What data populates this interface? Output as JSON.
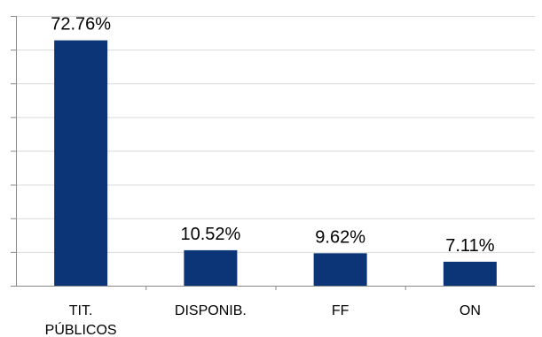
{
  "chart_data": {
    "type": "bar",
    "categories": [
      "TIT. PÚBLICOS",
      "DISPONIB.",
      "FF",
      "ON"
    ],
    "category_lines": [
      [
        "TIT.",
        "PÚBLICOS"
      ],
      [
        "DISPONIB."
      ],
      [
        "FF"
      ],
      [
        "ON"
      ]
    ],
    "values": [
      72.76,
      10.52,
      9.62,
      7.11
    ],
    "data_labels": [
      "72.76%",
      "10.52%",
      "9.62%",
      "7.11%"
    ],
    "ylim": [
      0,
      80
    ],
    "ytick_step": 10,
    "grid": true,
    "bar_color": "#0b3576",
    "title": "",
    "xlabel": "",
    "ylabel": ""
  }
}
